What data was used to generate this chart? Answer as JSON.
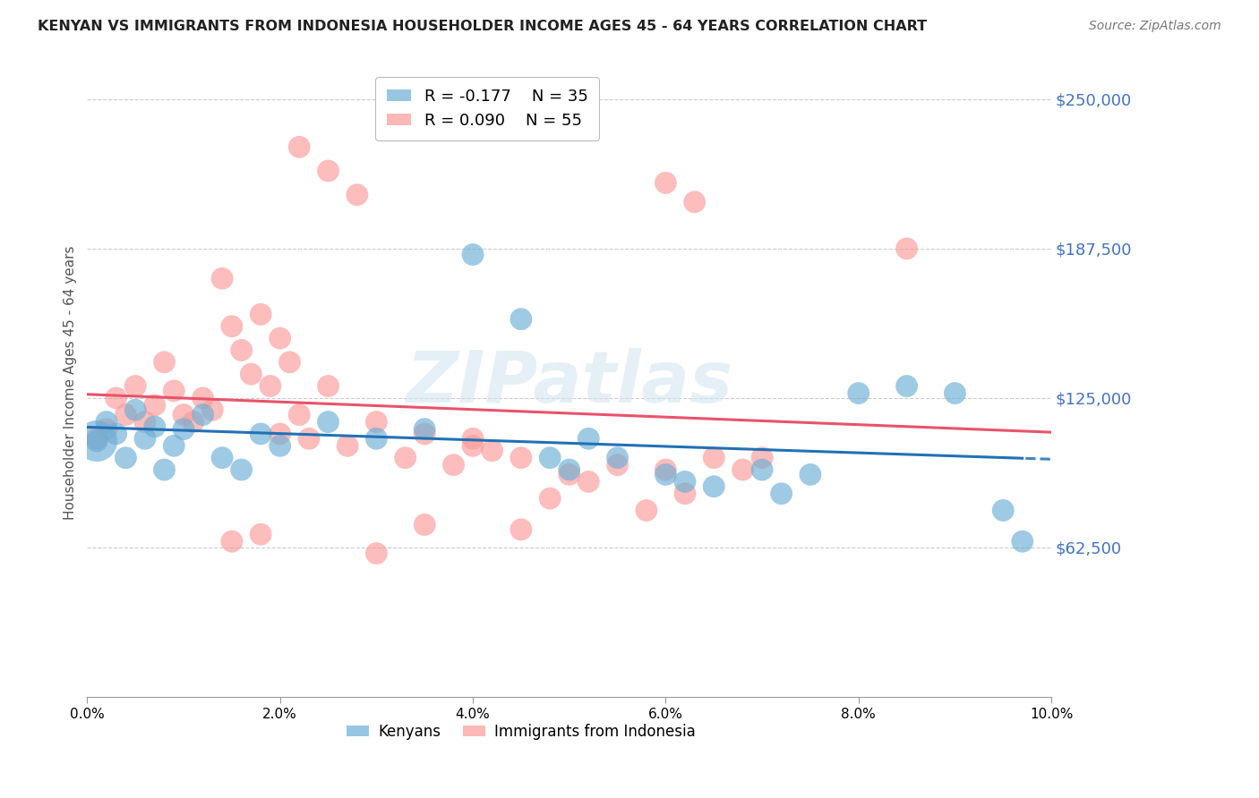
{
  "title": "KENYAN VS IMMIGRANTS FROM INDONESIA HOUSEHOLDER INCOME AGES 45 - 64 YEARS CORRELATION CHART",
  "source": "Source: ZipAtlas.com",
  "ylabel": "Householder Income Ages 45 - 64 years",
  "xlabel_ticks": [
    "0.0%",
    "2.0%",
    "4.0%",
    "6.0%",
    "8.0%",
    "10.0%"
  ],
  "xlabel_vals": [
    0.0,
    0.02,
    0.04,
    0.06,
    0.08,
    0.1
  ],
  "ylabel_ticks": [
    "$62,500",
    "$125,000",
    "$187,500",
    "$250,000"
  ],
  "ylabel_vals": [
    62500,
    125000,
    187500,
    250000
  ],
  "xlim": [
    0.0,
    0.1
  ],
  "ylim": [
    0,
    262500
  ],
  "kenyan_R": -0.177,
  "kenyan_N": 35,
  "indonesia_R": 0.09,
  "indonesia_N": 55,
  "kenyan_color": "#6baed6",
  "indonesia_color": "#fb9a99",
  "kenyan_line_color": "#2171b5",
  "indonesia_line_color": "#e8536a",
  "watermark": "ZIPatlas",
  "kenyan_x": [
    0.001,
    0.002,
    0.003,
    0.004,
    0.005,
    0.006,
    0.007,
    0.008,
    0.009,
    0.01,
    0.012,
    0.014,
    0.016,
    0.018,
    0.02,
    0.025,
    0.03,
    0.035,
    0.04,
    0.045,
    0.048,
    0.05,
    0.052,
    0.055,
    0.06,
    0.062,
    0.065,
    0.07,
    0.072,
    0.075,
    0.08,
    0.085,
    0.09,
    0.095,
    0.097
  ],
  "kenyan_y": [
    107000,
    115000,
    110000,
    100000,
    120000,
    108000,
    113000,
    95000,
    105000,
    112000,
    118000,
    100000,
    95000,
    110000,
    105000,
    115000,
    108000,
    112000,
    185000,
    158000,
    100000,
    95000,
    108000,
    100000,
    93000,
    90000,
    88000,
    95000,
    85000,
    93000,
    127000,
    130000,
    127000,
    78000,
    65000
  ],
  "indonesia_x": [
    0.001,
    0.002,
    0.003,
    0.004,
    0.005,
    0.006,
    0.007,
    0.008,
    0.009,
    0.01,
    0.011,
    0.012,
    0.013,
    0.014,
    0.015,
    0.016,
    0.017,
    0.018,
    0.019,
    0.02,
    0.021,
    0.022,
    0.023,
    0.025,
    0.027,
    0.03,
    0.033,
    0.035,
    0.038,
    0.04,
    0.042,
    0.045,
    0.048,
    0.05,
    0.052,
    0.055,
    0.058,
    0.06,
    0.062,
    0.065,
    0.068,
    0.07,
    0.045,
    0.03,
    0.035,
    0.04,
    0.025,
    0.028,
    0.022,
    0.06,
    0.063,
    0.018,
    0.015,
    0.085,
    0.02
  ],
  "indonesia_y": [
    108000,
    112000,
    125000,
    118000,
    130000,
    115000,
    122000,
    140000,
    128000,
    118000,
    115000,
    125000,
    120000,
    175000,
    155000,
    145000,
    135000,
    160000,
    130000,
    110000,
    140000,
    118000,
    108000,
    130000,
    105000,
    115000,
    100000,
    110000,
    97000,
    108000,
    103000,
    100000,
    83000,
    93000,
    90000,
    97000,
    78000,
    95000,
    85000,
    100000,
    95000,
    100000,
    70000,
    60000,
    72000,
    105000,
    220000,
    210000,
    230000,
    215000,
    207000,
    68000,
    65000,
    187500,
    150000
  ]
}
